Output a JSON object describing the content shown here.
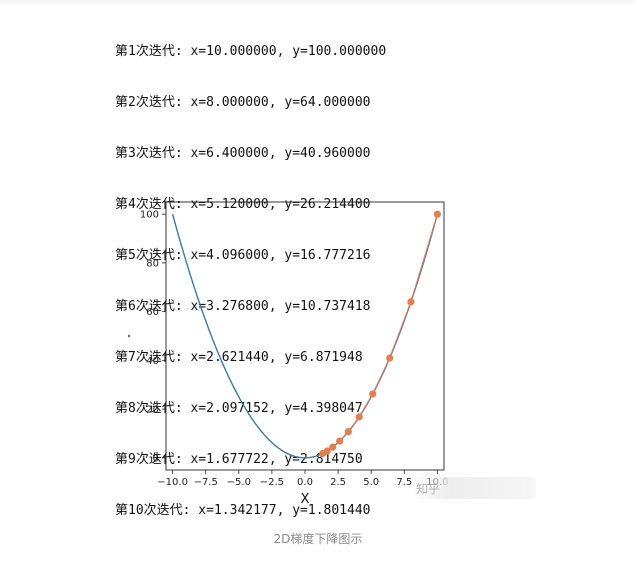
{
  "log_lines": [
    "第1次迭代: x=10.000000, y=100.000000",
    "第2次迭代: x=8.000000, y=64.000000",
    "第3次迭代: x=6.400000, y=40.960000",
    "第4次迭代: x=5.120000, y=26.214400",
    "第5次迭代: x=4.096000, y=16.777216",
    "第6次迭代: x=3.276800, y=10.737418",
    "第7次迭代: x=2.621440, y=6.871948",
    "第8次迭代: x=2.097152, y=4.398047",
    "第9次迭代: x=1.677722, y=2.814750",
    "第10次迭代: x=1.342177, y=1.801440"
  ],
  "chart_data": {
    "type": "line",
    "title": "",
    "xlabel": "X",
    "ylabel": "Y",
    "xlim": [
      -10.5,
      10.5
    ],
    "ylim": [
      -5,
      105
    ],
    "xticks": [
      -10.0,
      -7.5,
      -5.0,
      -2.5,
      0.0,
      2.5,
      5.0,
      7.5,
      10.0
    ],
    "xtick_labels": [
      "−10.0",
      "−7.5",
      "−5.0",
      "−2.5",
      "0.0",
      "2.5",
      "5.0",
      "7.5",
      "10.0"
    ],
    "yticks": [
      0,
      20,
      40,
      60,
      80,
      100
    ],
    "ytick_labels": [
      "0",
      "20",
      "40",
      "60",
      "80",
      "100"
    ],
    "grid": false,
    "series": [
      {
        "function": "y = x^2",
        "x_range": [
          -10,
          10
        ],
        "color": "#3a78a8"
      },
      {
        "x": [
          10.0,
          8.0,
          6.4,
          5.12,
          4.096,
          3.2768,
          2.62144,
          2.097152,
          1.677722,
          1.342177
        ],
        "y": [
          100.0,
          64.0,
          40.96,
          26.2144,
          16.777216,
          10.737418,
          6.871948,
          4.398047,
          2.81475,
          1.80144
        ],
        "color": "#e08050",
        "markers": true
      }
    ]
  },
  "caption": "2D梯度下降图示",
  "watermark": "知乎"
}
